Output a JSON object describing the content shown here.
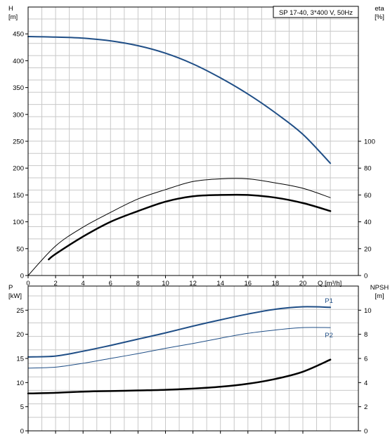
{
  "pump_label": "SP 17-40, 3*400 V, 50Hz",
  "colors": {
    "primary": "#1f4e86",
    "secondary": "#000000",
    "grid": "#c8c8c8"
  },
  "chart_data": [
    {
      "type": "line",
      "name": "H-eta panel",
      "legend": "SP 17-40, 3*400 V, 50Hz",
      "grid": true,
      "xlim": [
        0,
        22
      ],
      "x_ticks": [
        0,
        2,
        4,
        6,
        8,
        10,
        12,
        14,
        16,
        18,
        20
      ],
      "x_tick_labels": [
        "0",
        "2",
        "4",
        "6",
        "8",
        "10",
        "12",
        "14",
        "16",
        "18",
        "20"
      ],
      "x_end_label": "Q [m³/h]",
      "y_left": {
        "label_top": "H",
        "label_bottom": "[m]",
        "lim": [
          0,
          500
        ],
        "ticks": [
          0,
          50,
          100,
          150,
          200,
          250,
          300,
          350,
          400,
          450
        ]
      },
      "y_right": {
        "label_top": "eta",
        "label_bottom": "[%]",
        "lim": [
          0,
          200
        ],
        "ticks": [
          0,
          20,
          40,
          60,
          80,
          100
        ]
      },
      "series": [
        {
          "axis": "left",
          "color": "#1f4e86",
          "width": 2,
          "x": [
            0,
            2,
            4,
            6,
            8,
            10,
            12,
            14,
            16,
            18,
            20,
            22
          ],
          "y": [
            445,
            444,
            442,
            437,
            428,
            414,
            394,
            368,
            338,
            303,
            263,
            209
          ]
        },
        {
          "axis": "right",
          "color": "#000000",
          "width": 1,
          "x": [
            0,
            2,
            4,
            6,
            8,
            10,
            12,
            14,
            16,
            18,
            20,
            22
          ],
          "y": [
            0,
            22,
            36,
            47,
            57,
            64,
            70,
            72,
            72,
            69,
            65,
            58
          ]
        },
        {
          "axis": "right",
          "color": "#000000",
          "width": 2.5,
          "x": [
            1.5,
            2,
            4,
            6,
            8,
            10,
            12,
            14,
            16,
            18,
            20,
            22
          ],
          "y": [
            12,
            16,
            29,
            40,
            48,
            55,
            59,
            60,
            60,
            58,
            54,
            48
          ]
        }
      ]
    },
    {
      "type": "line",
      "name": "P-NPSH panel",
      "grid": true,
      "xlim": [
        0,
        22
      ],
      "x_ticks": [
        0,
        2,
        4,
        6,
        8,
        10,
        12,
        14,
        16,
        18,
        20
      ],
      "y_left": {
        "label_top": "P",
        "label_bottom": "[kW]",
        "lim": [
          0,
          30
        ],
        "ticks": [
          0,
          5,
          10,
          15,
          20,
          25
        ]
      },
      "y_right": {
        "label_top": "NPSH",
        "label_bottom": "[m]",
        "lim": [
          0,
          12
        ],
        "ticks": [
          0,
          2,
          4,
          6,
          8,
          10
        ]
      },
      "series": [
        {
          "name": "P1",
          "axis": "left",
          "color": "#1f4e86",
          "width": 2,
          "x": [
            0,
            2,
            4,
            6,
            8,
            10,
            12,
            14,
            16,
            18,
            20,
            22
          ],
          "y": [
            15.3,
            15.5,
            16.5,
            17.7,
            19.0,
            20.3,
            21.7,
            23.0,
            24.2,
            25.2,
            25.7,
            25.6
          ]
        },
        {
          "name": "P2",
          "axis": "left",
          "color": "#1f4e86",
          "width": 1,
          "x": [
            0,
            2,
            4,
            6,
            8,
            10,
            12,
            14,
            16,
            18,
            20,
            22
          ],
          "y": [
            13.0,
            13.2,
            14.0,
            15.0,
            16.0,
            17.1,
            18.1,
            19.2,
            20.2,
            20.9,
            21.4,
            21.4
          ]
        },
        {
          "axis": "right",
          "color": "#000000",
          "width": 2.5,
          "x": [
            0,
            2,
            4,
            6,
            8,
            10,
            12,
            14,
            16,
            18,
            20,
            22
          ],
          "y": [
            3.1,
            3.15,
            3.25,
            3.3,
            3.35,
            3.4,
            3.5,
            3.65,
            3.9,
            4.3,
            4.9,
            5.9
          ]
        }
      ]
    }
  ]
}
